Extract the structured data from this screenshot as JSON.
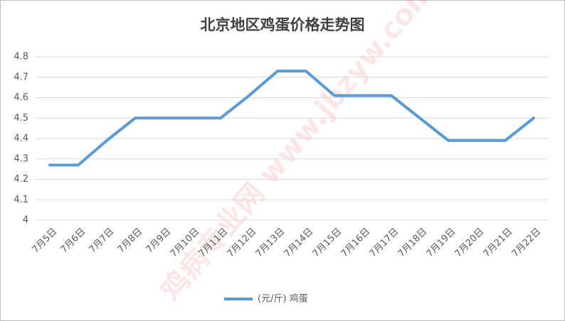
{
  "chart_data": {
    "type": "line",
    "title": "北京地区鸡蛋价格走势图",
    "categories": [
      "7月5日",
      "7月6日",
      "7月7日",
      "7月8日",
      "7月9日",
      "7月10日",
      "7月11日",
      "7月12日",
      "7月13日",
      "7月14日",
      "7月15日",
      "7月16日",
      "7月17日",
      "7月18日",
      "7月19日",
      "7月20日",
      "7月21日",
      "7月22日"
    ],
    "series": [
      {
        "name": "(元/斤) 鸡蛋",
        "color": "#5b9bd5",
        "values": [
          4.27,
          4.27,
          4.39,
          4.5,
          4.5,
          4.5,
          4.5,
          4.61,
          4.73,
          4.73,
          4.61,
          4.61,
          4.61,
          4.5,
          4.39,
          4.39,
          4.39,
          4.5
        ]
      }
    ],
    "ylim": [
      4,
      4.8
    ],
    "yticks": [
      4,
      4.1,
      4.2,
      4.3,
      4.4,
      4.5,
      4.6,
      4.7,
      4.8
    ],
    "grid": true,
    "legend": "bottom",
    "watermark": "鸡病专业网 www.jbzyw.com"
  }
}
